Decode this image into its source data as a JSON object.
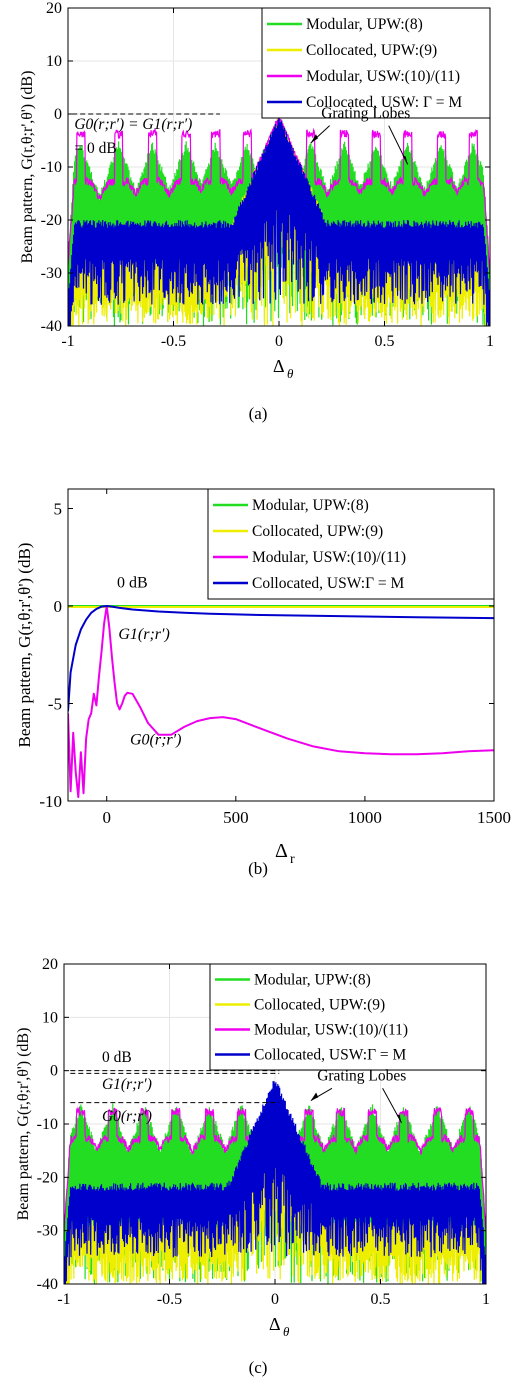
{
  "panels": [
    {
      "caption": "(a)",
      "chart_data": {
        "type": "line",
        "xlabel": "Δ",
        "xlabel_sub": "θ",
        "ylabel": "Beam pattern, G(r,θ;r',θ') (dB)",
        "xlim": [
          -1,
          1
        ],
        "ylim": [
          -40,
          20
        ],
        "xticks": [
          -1,
          -0.5,
          0,
          0.5,
          1
        ],
        "xtick_labels": [
          "-1",
          "-0.5",
          "0",
          "0.5",
          "1"
        ],
        "yticks": [
          -40,
          -30,
          -20,
          -10,
          0,
          10,
          20
        ],
        "ytick_labels": [
          "-40",
          "-30",
          "-20",
          "-10",
          "0",
          "10",
          "20"
        ],
        "grid": true,
        "legend_position": "top-right",
        "series": [
          {
            "name": "Modular, UPW:(8)",
            "color": "#22dd22",
            "kind": "comb",
            "grating_peaks": [
              -0.94,
              -0.76,
              -0.6,
              -0.44,
              -0.3,
              -0.15,
              0.15,
              0.31,
              0.46,
              0.61,
              0.77,
              0.92
            ],
            "peak_level": -5,
            "floor": -21,
            "noise_low": -40,
            "main_lobe": 0
          },
          {
            "name": "Collocated, UPW:(9)",
            "color": "#eeee00",
            "kind": "noise",
            "floor": -27,
            "noise_low": -40,
            "main_lobe": 0
          },
          {
            "name": "Modular, USW:(10)/(11)",
            "color": "#ee00ee",
            "kind": "plateau",
            "grating_peaks": [
              -0.94,
              -0.76,
              -0.6,
              -0.44,
              -0.3,
              -0.15,
              0.15,
              0.31,
              0.46,
              0.61,
              0.77,
              0.92
            ],
            "peak_level": -3,
            "shoulder": -12,
            "floor": -18,
            "noise_low": -36,
            "main_lobe": 0
          },
          {
            "name": "Collocated, USW: Γ = M",
            "color": "#0000cc",
            "kind": "band",
            "floor": -20,
            "noise_low": -36,
            "main_lobe": 0
          }
        ],
        "reference_lines": [
          {
            "label": "G0(r;r′) = G1(r;r′)",
            "label_line2": "= 0 dB",
            "value": 0
          }
        ],
        "annotations": [
          {
            "text": "Grating Lobes"
          }
        ]
      }
    },
    {
      "caption": "(b)",
      "chart_data": {
        "type": "line",
        "xlabel": "Δ",
        "xlabel_sub": "r",
        "ylabel": "Beam pattern, G(r,θ;r',θ') (dB)",
        "xlim": [
          -150,
          1500
        ],
        "ylim": [
          -10,
          6
        ],
        "xticks": [
          0,
          500,
          1000,
          1500
        ],
        "xtick_labels": [
          "0",
          "500",
          "1000",
          "1500"
        ],
        "yticks": [
          -10,
          -5,
          0,
          5
        ],
        "ytick_labels": [
          "-10",
          "-5",
          "0",
          "5"
        ],
        "grid": false,
        "legend_position": "top-right",
        "series": [
          {
            "name": "Modular, UPW:(8)",
            "color": "#22dd22",
            "x": [
              -150,
              1500
            ],
            "y": [
              0,
              0
            ]
          },
          {
            "name": "Collocated, UPW:(9)",
            "color": "#eeee00",
            "x": [
              -150,
              1500
            ],
            "y": [
              -0.05,
              -0.05
            ]
          },
          {
            "name": "Modular, USW:(10)/(11)",
            "color": "#ee00ee",
            "x": [
              -150,
              -140,
              -130,
              -120,
              -110,
              -100,
              -90,
              -80,
              -70,
              -60,
              -50,
              -40,
              -30,
              -20,
              -10,
              0,
              10,
              20,
              30,
              40,
              50,
              60,
              70,
              80,
              100,
              130,
              160,
              200,
              250,
              300,
              350,
              400,
              450,
              500,
              600,
              700,
              800,
              900,
              1000,
              1100,
              1200,
              1300,
              1400,
              1500
            ],
            "y": [
              -5.5,
              -9.5,
              -6.5,
              -8.5,
              -9.8,
              -7.5,
              -9.6,
              -6.8,
              -5.8,
              -5.5,
              -4.5,
              -5.1,
              -3.6,
              -2.3,
              -0.9,
              0,
              -1.1,
              -2.6,
              -3.9,
              -5.0,
              -5.3,
              -5.0,
              -4.6,
              -4.45,
              -4.5,
              -5.2,
              -6.0,
              -6.6,
              -6.6,
              -6.2,
              -5.9,
              -5.75,
              -5.7,
              -5.8,
              -6.3,
              -6.8,
              -7.2,
              -7.45,
              -7.55,
              -7.6,
              -7.6,
              -7.55,
              -7.45,
              -7.4
            ]
          },
          {
            "name": "Collocated, USW:Γ = M",
            "color": "#0000cc",
            "x": [
              -150,
              -140,
              -120,
              -100,
              -80,
              -60,
              -40,
              -20,
              0,
              20,
              50,
              100,
              200,
              300,
              400,
              500,
              600,
              800,
              1000,
              1200,
              1500
            ],
            "y": [
              -5.4,
              -3.4,
              -2.0,
              -1.2,
              -0.7,
              -0.35,
              -0.15,
              -0.03,
              0,
              -0.03,
              -0.1,
              -0.18,
              -0.28,
              -0.35,
              -0.4,
              -0.43,
              -0.46,
              -0.5,
              -0.54,
              -0.58,
              -0.62
            ]
          }
        ],
        "annotations": [
          {
            "text": "0 dB"
          },
          {
            "text": "G1(r;r′)"
          },
          {
            "text": "G0(r;r′)"
          }
        ]
      }
    },
    {
      "caption": "(c)",
      "chart_data": {
        "type": "line",
        "xlabel": "Δ",
        "xlabel_sub": "θ",
        "ylabel": "Beam pattern, G(r,θ;r',θ') (dB)",
        "xlim": [
          -1,
          1
        ],
        "ylim": [
          -40,
          20
        ],
        "xticks": [
          -1,
          -0.5,
          0,
          0.5,
          1
        ],
        "xtick_labels": [
          "-1",
          "-0.5",
          "0",
          "0.5",
          "1"
        ],
        "yticks": [
          -40,
          -30,
          -20,
          -10,
          0,
          10,
          20
        ],
        "ytick_labels": [
          "-40",
          "-30",
          "-20",
          "-10",
          "0",
          "10",
          "20"
        ],
        "grid": true,
        "legend_position": "top-right",
        "series": [
          {
            "name": "Modular, UPW:(8)",
            "color": "#22dd22",
            "kind": "comb",
            "grating_peaks": [
              -0.92,
              -0.77,
              -0.62,
              -0.47,
              -0.31,
              -0.16,
              0.16,
              0.31,
              0.46,
              0.61,
              0.77,
              0.92
            ],
            "peak_level": -6,
            "floor": -22,
            "noise_low": -40,
            "main_lobe": -7
          },
          {
            "name": "Collocated, UPW:(9)",
            "color": "#eeee00",
            "kind": "noise",
            "floor": -28,
            "noise_low": -40,
            "main_lobe": -7
          },
          {
            "name": "Modular, USW:(10)/(11)",
            "color": "#ee00ee",
            "kind": "plateau",
            "grating_peaks": [
              -0.92,
              -0.77,
              -0.62,
              -0.47,
              -0.31,
              -0.16,
              0.16,
              0.31,
              0.46,
              0.61,
              0.77,
              0.92
            ],
            "peak_level": -7,
            "shoulder": -12,
            "floor": -17,
            "noise_low": -19,
            "main_lobe": -6
          },
          {
            "name": "Collocated, USW:Γ = M",
            "color": "#0000cc",
            "kind": "band",
            "floor": -21,
            "noise_low": -35,
            "main_lobe": -1
          }
        ],
        "reference_lines": [
          {
            "label": "0 dB",
            "value": 0
          },
          {
            "label": "G1(r;r′)",
            "value": -0.5
          },
          {
            "label": "G0(r;r′)",
            "value": -6
          }
        ],
        "annotations": [
          {
            "text": "Grating Lobes"
          }
        ]
      }
    }
  ]
}
